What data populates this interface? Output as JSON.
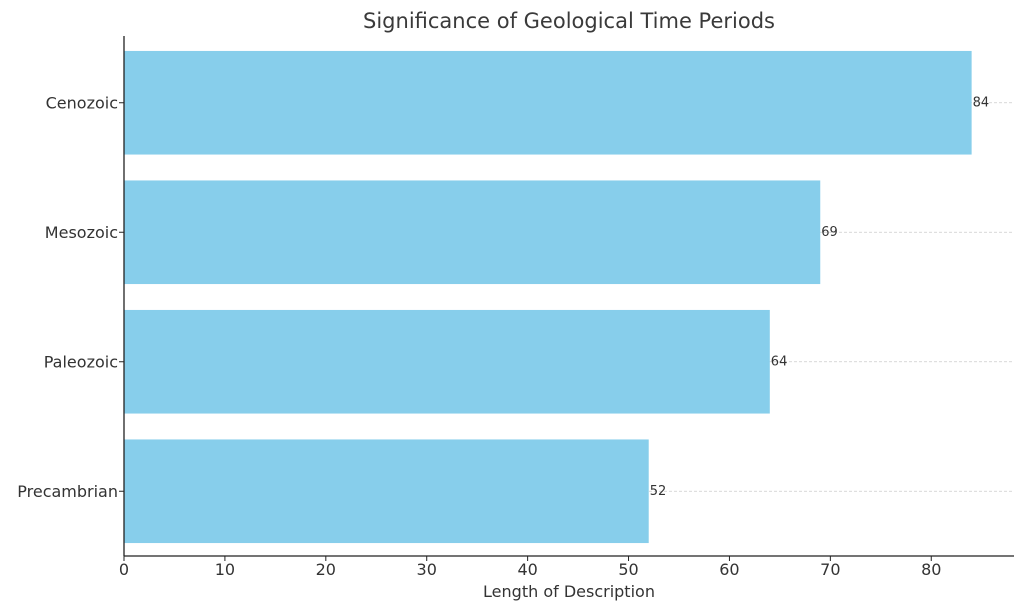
{
  "chart_data": {
    "type": "bar",
    "orientation": "horizontal",
    "title": "Significance of Geological Time Periods",
    "xlabel": "Length of Description",
    "ylabel": "",
    "categories": [
      "Precambrian",
      "Paleozoic",
      "Mesozoic",
      "Cenozoic"
    ],
    "values": [
      52,
      64,
      69,
      84
    ],
    "data_labels": [
      "52",
      "64",
      "69",
      "84"
    ],
    "xlim": [
      0,
      88.2
    ],
    "xticks": [
      0,
      10,
      20,
      30,
      40,
      50,
      60,
      70,
      80
    ],
    "xtick_labels": [
      "0",
      "10",
      "20",
      "30",
      "40",
      "50",
      "60",
      "70",
      "80"
    ],
    "grid": "dashed horizontal lines at bars",
    "legend": "none",
    "colors": {
      "bar": "#87CEEB",
      "axis": "#222222",
      "grid": "#cccccc",
      "text": "#333333"
    }
  }
}
